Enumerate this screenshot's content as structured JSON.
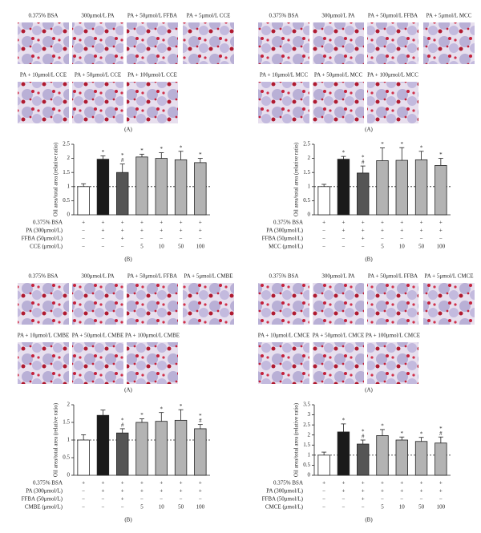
{
  "chart_data": [
    {
      "type": "bar",
      "image_labels": [
        "0.375% BSA",
        "300μmol/L PA",
        "PA + 50μmol/L FFBA",
        "PA + 5μmol/L CCE",
        "PA + 10μmol/L CCE",
        "PA + 50μmol/L CCE",
        "PA + 100μmol/L CCE"
      ],
      "image_caption": "(A)",
      "chart_caption": "(B)",
      "ylabel": "Oil area/total area (relative ratio)",
      "values": [
        1.0,
        1.97,
        1.5,
        2.05,
        2.0,
        1.95,
        1.85
      ],
      "errors": [
        0.1,
        0.12,
        0.3,
        0.1,
        0.2,
        0.3,
        0.15
      ],
      "annotations": [
        [],
        [
          "*"
        ],
        [
          "*",
          "#"
        ],
        [
          "*"
        ],
        [
          "*"
        ],
        [
          "*"
        ],
        [
          "*"
        ]
      ],
      "colors": [
        "#ffffff",
        "#1a1a1a",
        "#555555",
        "#b3b3b3",
        "#b3b3b3",
        "#b3b3b3",
        "#b3b3b3"
      ],
      "ylim": [
        0,
        2.5
      ],
      "yticks": [
        0,
        0.5,
        1,
        1.5,
        2,
        2.5
      ],
      "refline": 1,
      "treatment": [
        {
          "label": "0.375% BSA",
          "marks": [
            "+",
            "+",
            "+",
            "+",
            "+",
            "+",
            "+"
          ]
        },
        {
          "label": "PA (300μmol/L)",
          "marks": [
            "−",
            "+",
            "+",
            "+",
            "+",
            "+",
            "+"
          ]
        },
        {
          "label": "FFBA (50μmol/L)",
          "marks": [
            "−",
            "−",
            "+",
            "−",
            "−",
            "−",
            "−"
          ]
        },
        {
          "label": "CCE (μmol/L)",
          "marks": [
            "−",
            "−",
            "−",
            "5",
            "10",
            "50",
            "100"
          ]
        }
      ]
    },
    {
      "type": "bar",
      "image_labels": [
        "0.375% BSA",
        "300μmol/L PA",
        "PA + 50μmol/L FFBA",
        "PA + 5μmol/L MCC",
        "PA + 10μmol/L MCC",
        "PA + 50μmol/L MCC",
        "PA + 100μmol/L MCC"
      ],
      "image_caption": "(A)",
      "chart_caption": "(B)",
      "ylabel": "Oil area/total area (relative ratio)",
      "values": [
        1.0,
        1.97,
        1.48,
        1.92,
        1.93,
        1.95,
        1.75
      ],
      "errors": [
        0.08,
        0.1,
        0.25,
        0.45,
        0.45,
        0.3,
        0.25
      ],
      "annotations": [
        [],
        [
          "*"
        ],
        [
          "*",
          "#"
        ],
        [
          "*"
        ],
        [
          "*"
        ],
        [
          "*"
        ],
        [
          "*"
        ]
      ],
      "colors": [
        "#ffffff",
        "#1a1a1a",
        "#555555",
        "#b3b3b3",
        "#b3b3b3",
        "#b3b3b3",
        "#b3b3b3"
      ],
      "ylim": [
        0,
        2.5
      ],
      "yticks": [
        0,
        0.5,
        1,
        1.5,
        2,
        2.5
      ],
      "refline": 1,
      "treatment": [
        {
          "label": "0.375% BSA",
          "marks": [
            "+",
            "+",
            "+",
            "+",
            "+",
            "+",
            "+"
          ]
        },
        {
          "label": "PA (300μmol/L)",
          "marks": [
            "−",
            "+",
            "+",
            "+",
            "+",
            "+",
            "+"
          ]
        },
        {
          "label": "FFBA (50μmol/L)",
          "marks": [
            "−",
            "−",
            "+",
            "−",
            "−",
            "−",
            "−"
          ]
        },
        {
          "label": "MCC (μmol/L)",
          "marks": [
            "−",
            "−",
            "−",
            "5",
            "10",
            "50",
            "100"
          ]
        }
      ]
    },
    {
      "type": "bar",
      "image_labels": [
        "0.375% BSA",
        "300μmol/L PA",
        "PA + 50μmol/L FFBA",
        "PA + 5μmol/L CMBE",
        "PA + 10μmol/L CMBE",
        "PA + 50μmol/L CMBE",
        "PA + 100μmol/L CMBE"
      ],
      "image_caption": "(A)",
      "chart_caption": "(B)",
      "ylabel": "Oil area/total area (relative ratio)",
      "values": [
        1.0,
        1.7,
        1.2,
        1.5,
        1.53,
        1.56,
        1.32
      ],
      "errors": [
        0.15,
        0.15,
        0.12,
        0.1,
        0.25,
        0.3,
        0.12
      ],
      "annotations": [
        [],
        [],
        [
          "*",
          "#"
        ],
        [
          "*"
        ],
        [
          "*"
        ],
        [
          "*"
        ],
        [
          "*",
          "#"
        ]
      ],
      "colors": [
        "#ffffff",
        "#1a1a1a",
        "#555555",
        "#b3b3b3",
        "#b3b3b3",
        "#b3b3b3",
        "#b3b3b3"
      ],
      "ylim": [
        0,
        2
      ],
      "yticks": [
        0,
        0.5,
        1,
        1.5,
        2
      ],
      "refline": 1,
      "treatment": [
        {
          "label": "0.375% BSA",
          "marks": [
            "+",
            "+",
            "+",
            "+",
            "+",
            "+",
            "+"
          ]
        },
        {
          "label": "PA (300μmol/L)",
          "marks": [
            "−",
            "+",
            "+",
            "+",
            "+",
            "+",
            "+"
          ]
        },
        {
          "label": "FFBA (50μmol/L)",
          "marks": [
            "−",
            "−",
            "+",
            "−",
            "−",
            "−",
            "−"
          ]
        },
        {
          "label": "CMBE (μmol/L)",
          "marks": [
            "−",
            "−",
            "−",
            "5",
            "10",
            "50",
            "100"
          ]
        }
      ]
    },
    {
      "type": "bar",
      "image_labels": [
        "0.375% BSA",
        "300μmol/L PA",
        "PA + 50μmol/L FFBA",
        "PA + 5μmol/L CMCE",
        "PA + 10μmol/L CMCE",
        "PA + 50μmol/L CMCE",
        "PA + 100μmol/L CMCE"
      ],
      "image_caption": "(A)",
      "chart_caption": "(B)",
      "ylabel": "Oil area/total area (relative ratio)",
      "values": [
        1.0,
        2.15,
        1.55,
        1.97,
        1.75,
        1.68,
        1.6
      ],
      "errors": [
        0.15,
        0.4,
        0.2,
        0.3,
        0.15,
        0.2,
        0.3
      ],
      "annotations": [
        [],
        [
          "*"
        ],
        [
          "*",
          "#"
        ],
        [
          "*"
        ],
        [
          "*"
        ],
        [
          "*"
        ],
        [
          "*",
          "#"
        ]
      ],
      "colors": [
        "#ffffff",
        "#1a1a1a",
        "#555555",
        "#b3b3b3",
        "#b3b3b3",
        "#b3b3b3",
        "#b3b3b3"
      ],
      "ylim": [
        0,
        3.5
      ],
      "yticks": [
        0,
        0.5,
        1,
        1.5,
        2,
        2.5,
        3,
        3.5
      ],
      "refline": 1,
      "treatment": [
        {
          "label": "0.375% BSA",
          "marks": [
            "+",
            "+",
            "+",
            "+",
            "+",
            "+",
            "+"
          ]
        },
        {
          "label": "PA (300μmol/L)",
          "marks": [
            "−",
            "+",
            "+",
            "+",
            "+",
            "+",
            "+"
          ]
        },
        {
          "label": "FFBA (50μmol/L)",
          "marks": [
            "−",
            "−",
            "+",
            "−",
            "−",
            "−",
            "−"
          ]
        },
        {
          "label": "CMCE (μmol/L)",
          "marks": [
            "−",
            "−",
            "−",
            "5",
            "10",
            "50",
            "100"
          ]
        }
      ]
    }
  ]
}
